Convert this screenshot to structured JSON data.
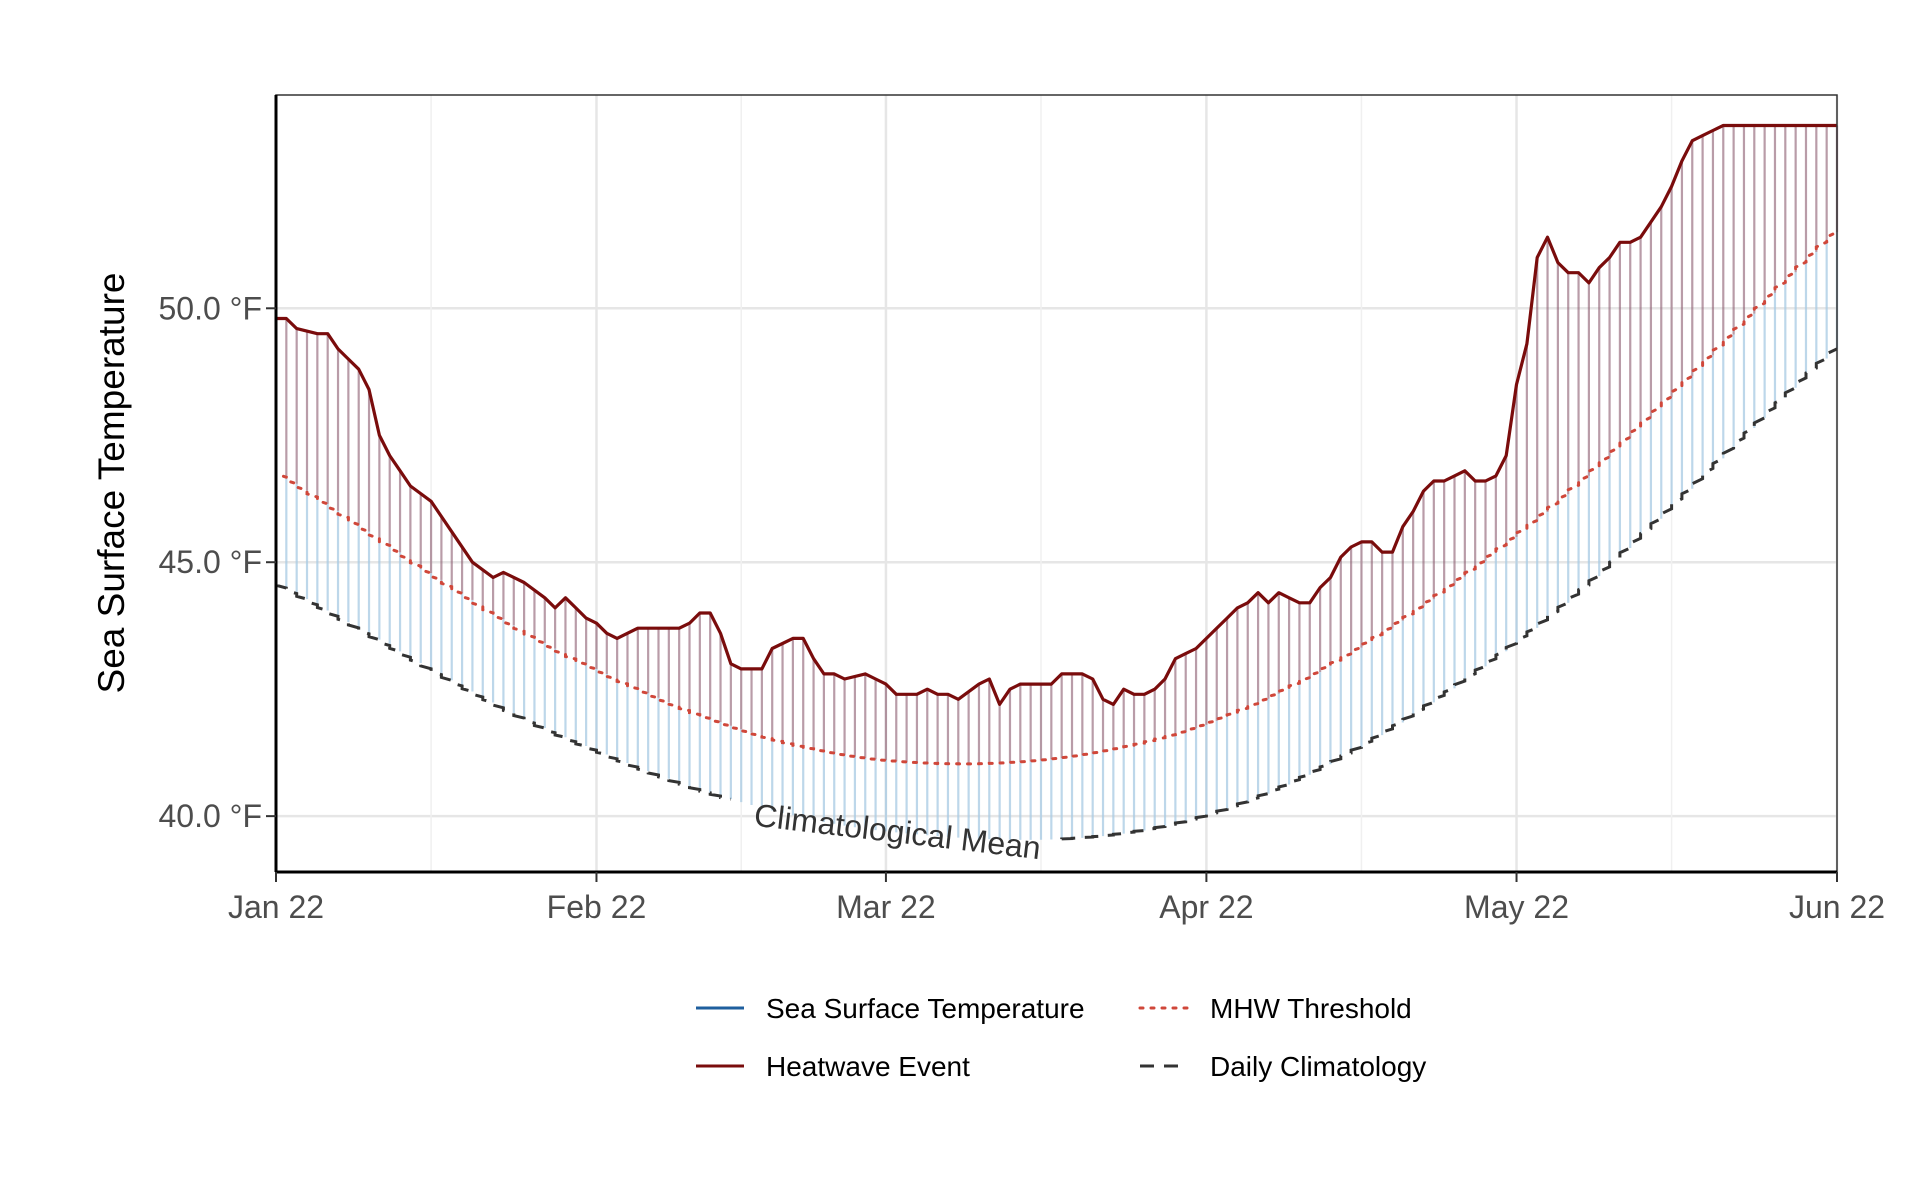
{
  "chart_data": {
    "type": "line",
    "xlabel": "",
    "ylabel": "Sea Surface Temperature",
    "x_range": [
      "2022-01-22",
      "2022-06-22"
    ],
    "ylim": [
      38.9,
      54.2
    ],
    "grid": true,
    "x_ticks": [
      {
        "date": "2022-01-22",
        "label": "Jan 22"
      },
      {
        "date": "2022-02-22",
        "label": "Feb 22"
      },
      {
        "date": "2022-03-22",
        "label": "Mar 22"
      },
      {
        "date": "2022-04-22",
        "label": "Apr 22"
      },
      {
        "date": "2022-05-22",
        "label": "May 22"
      },
      {
        "date": "2022-06-22",
        "label": "Jun 22"
      }
    ],
    "y_ticks": [
      {
        "value": 40,
        "label": "40.0 °F"
      },
      {
        "value": 45,
        "label": "45.0 °F"
      },
      {
        "value": 50,
        "label": "50.0 °F"
      }
    ],
    "annotation": {
      "text": "Climatological Mean",
      "date": "2022-04-01",
      "value": 40.0
    },
    "colors": {
      "sst": "#1f5f9e",
      "heatwave": "#7a0c0c",
      "threshold": "#d0473a",
      "climatology": "#333333",
      "fill_below_threshold": "#a7c9e3",
      "fill_above_threshold": "#8a5a6e"
    },
    "legend_position": "bottom",
    "legend": [
      {
        "key": "sst",
        "label": "Sea Surface Temperature",
        "style": "solid",
        "color": "#1f5f9e"
      },
      {
        "key": "threshold",
        "label": "MHW Threshold",
        "style": "dotted",
        "color": "#d0473a"
      },
      {
        "key": "heatwave",
        "label": "Heatwave Event",
        "style": "solid",
        "color": "#7a0c0c"
      },
      {
        "key": "climatology",
        "label": "Daily Climatology",
        "style": "dashed",
        "color": "#333333"
      }
    ],
    "climatology": {
      "dates": [
        "2022-01-22",
        "2022-02-22",
        "2022-03-22",
        "2022-04-22",
        "2022-05-22",
        "2022-06-22"
      ],
      "values": [
        44.6,
        41.3,
        39.7,
        40.0,
        43.4,
        49.2
      ]
    },
    "threshold": {
      "dates": [
        "2022-01-22",
        "2022-02-22",
        "2022-03-22",
        "2022-04-22",
        "2022-05-22",
        "2022-06-22"
      ],
      "values": [
        46.8,
        42.9,
        41.1,
        41.8,
        45.5,
        51.5
      ]
    },
    "sst": {
      "dates": [
        "2022-01-22",
        "2022-01-23",
        "2022-01-24",
        "2022-01-26",
        "2022-01-27",
        "2022-01-28",
        "2022-01-29",
        "2022-01-30",
        "2022-01-31",
        "2022-02-01",
        "2022-02-02",
        "2022-02-03",
        "2022-02-04",
        "2022-02-06",
        "2022-02-08",
        "2022-02-10",
        "2022-02-12",
        "2022-02-13",
        "2022-02-15",
        "2022-02-17",
        "2022-02-18",
        "2022-02-19",
        "2022-02-20",
        "2022-02-21",
        "2022-02-22",
        "2022-02-23",
        "2022-02-24",
        "2022-02-26",
        "2022-02-28",
        "2022-03-01",
        "2022-03-02",
        "2022-03-03",
        "2022-03-04",
        "2022-03-05",
        "2022-03-06",
        "2022-03-07",
        "2022-03-08",
        "2022-03-09",
        "2022-03-10",
        "2022-03-11",
        "2022-03-12",
        "2022-03-13",
        "2022-03-14",
        "2022-03-15",
        "2022-03-16",
        "2022-03-17",
        "2022-03-18",
        "2022-03-20",
        "2022-03-21",
        "2022-03-22",
        "2022-03-23",
        "2022-03-24",
        "2022-03-25",
        "2022-03-26",
        "2022-03-27",
        "2022-03-28",
        "2022-03-29",
        "2022-03-31",
        "2022-04-01",
        "2022-04-02",
        "2022-04-03",
        "2022-04-04",
        "2022-04-05",
        "2022-04-06",
        "2022-04-07",
        "2022-04-08",
        "2022-04-09",
        "2022-04-10",
        "2022-04-11",
        "2022-04-12",
        "2022-04-13",
        "2022-04-14",
        "2022-04-15",
        "2022-04-16",
        "2022-04-17",
        "2022-04-18",
        "2022-04-19",
        "2022-04-20",
        "2022-04-21",
        "2022-04-22",
        "2022-04-23",
        "2022-04-24",
        "2022-04-25",
        "2022-04-26",
        "2022-04-27",
        "2022-04-28",
        "2022-04-29",
        "2022-04-30",
        "2022-05-01",
        "2022-05-02",
        "2022-05-03",
        "2022-05-04",
        "2022-05-05",
        "2022-05-06",
        "2022-05-07",
        "2022-05-08",
        "2022-05-09",
        "2022-05-10",
        "2022-05-11",
        "2022-05-12",
        "2022-05-13",
        "2022-05-14",
        "2022-05-15",
        "2022-05-16",
        "2022-05-17",
        "2022-05-18",
        "2022-05-19",
        "2022-05-20",
        "2022-05-21",
        "2022-05-22",
        "2022-05-23",
        "2022-05-24",
        "2022-05-25",
        "2022-05-26",
        "2022-05-27",
        "2022-05-28",
        "2022-05-29",
        "2022-05-30",
        "2022-05-31",
        "2022-06-01",
        "2022-06-02",
        "2022-06-03",
        "2022-06-04",
        "2022-06-05",
        "2022-06-06",
        "2022-06-07",
        "2022-06-08",
        "2022-06-09",
        "2022-06-10",
        "2022-06-11",
        "2022-06-12",
        "2022-06-13",
        "2022-06-14",
        "2022-06-15",
        "2022-06-16",
        "2022-06-17",
        "2022-06-18",
        "2022-06-19",
        "2022-06-20",
        "2022-06-21",
        "2022-06-22"
      ],
      "values": [
        49.8,
        49.8,
        49.6,
        49.5,
        49.5,
        49.2,
        49.0,
        48.8,
        48.4,
        47.5,
        47.1,
        46.8,
        46.5,
        46.2,
        45.6,
        45.0,
        44.7,
        44.8,
        44.6,
        44.3,
        44.1,
        44.3,
        44.1,
        43.9,
        43.8,
        43.6,
        43.5,
        43.7,
        43.7,
        43.7,
        43.7,
        43.8,
        44.0,
        44.0,
        43.6,
        43.0,
        42.9,
        42.9,
        42.9,
        43.3,
        43.4,
        43.5,
        43.5,
        43.1,
        42.8,
        42.8,
        42.7,
        42.8,
        42.7,
        42.6,
        42.4,
        42.4,
        42.4,
        42.5,
        42.4,
        42.4,
        42.3,
        42.6,
        42.7,
        42.2,
        42.5,
        42.6,
        42.6,
        42.6,
        42.6,
        42.8,
        42.8,
        42.8,
        42.7,
        42.3,
        42.2,
        42.5,
        42.4,
        42.4,
        42.5,
        42.7,
        43.1,
        43.2,
        43.3,
        43.5,
        43.7,
        43.9,
        44.1,
        44.2,
        44.4,
        44.2,
        44.4,
        44.3,
        44.2,
        44.2,
        44.5,
        44.7,
        45.1,
        45.3,
        45.4,
        45.4,
        45.2,
        45.2,
        45.7,
        46.0,
        46.4,
        46.6,
        46.6,
        46.7,
        46.8,
        46.6,
        46.6,
        46.7,
        47.1,
        48.5,
        49.3,
        51.0,
        51.4,
        50.9,
        50.7,
        50.7,
        50.5,
        50.8,
        51.0,
        51.3,
        51.3,
        51.4,
        51.7,
        52.0,
        52.4,
        52.9,
        53.3,
        53.4,
        53.5,
        53.6,
        53.6,
        53.6,
        53.6,
        53.6,
        53.6,
        53.6,
        53.6,
        53.6,
        53.6,
        53.6,
        53.6
      ]
    }
  }
}
